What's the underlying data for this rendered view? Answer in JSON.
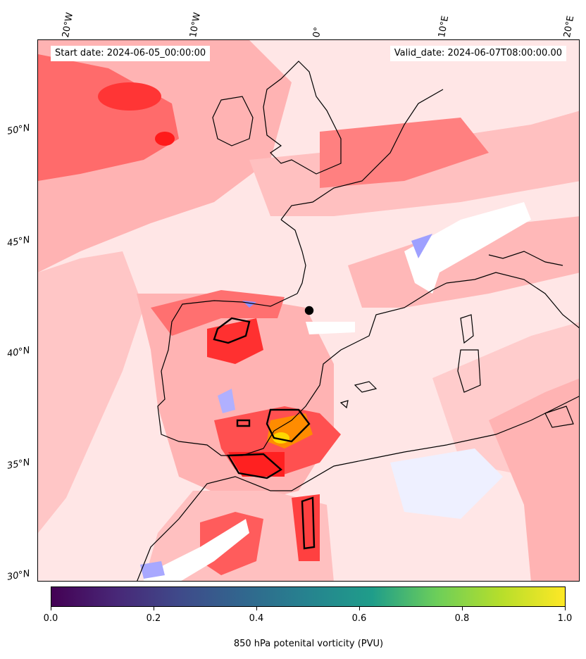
{
  "header": {
    "start_date": "Start date: 2024-06-05_00:00:00",
    "valid_date": "Valid_date: 2024-06-07T08:00:00.00"
  },
  "longitude_labels": [
    "20°W",
    "10°W",
    "0°",
    "10°E",
    "20°E"
  ],
  "latitude_labels": [
    "50°N",
    "45°N",
    "40°N",
    "35°N",
    "30°N"
  ],
  "colorbar": {
    "title": "850 hPa potenital vorticity (PVU)",
    "ticks": [
      "0.0",
      "0.2",
      "0.4",
      "0.6",
      "0.8",
      "1.0"
    ],
    "range": [
      0.0,
      1.0
    ],
    "colormap": "viridis"
  },
  "colors": {
    "field_background": "#ffe6e6",
    "low_pv": "#ffffff",
    "negative_pv": "#b8b8ff",
    "medium_pv": "#ffb3b3",
    "high_pv": "#ff4040",
    "very_high_pv": "#ff0000",
    "peak_pv": "#ffa500",
    "coastline": "#000000"
  }
}
